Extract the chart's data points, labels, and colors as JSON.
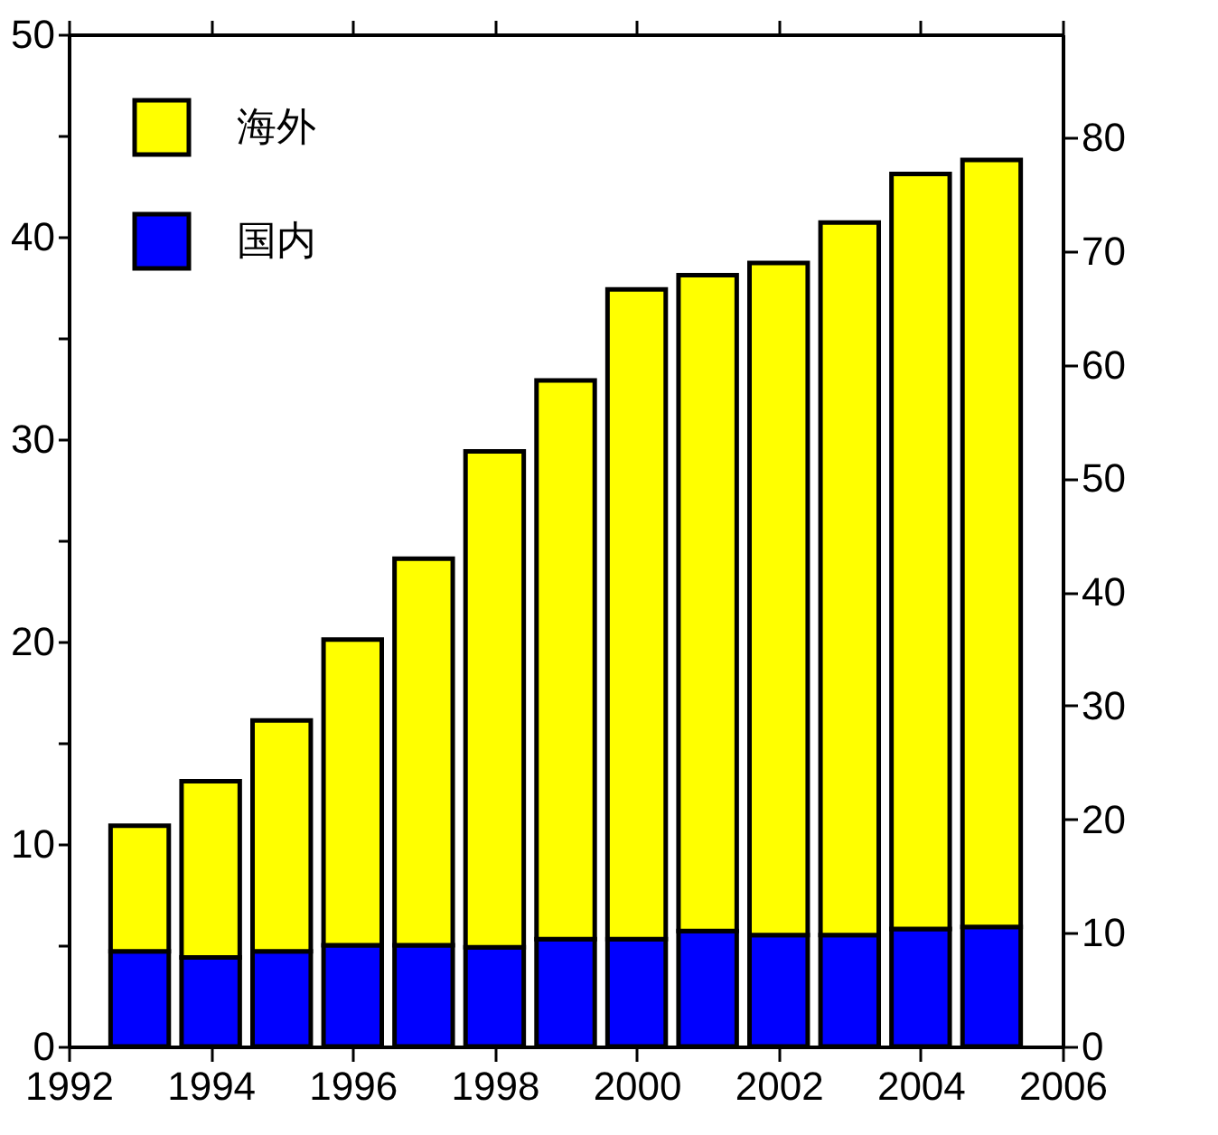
{
  "chart_data": {
    "type": "bar",
    "stacked": true,
    "x": [
      1993,
      1994,
      1995,
      1996,
      1997,
      1998,
      1999,
      2000,
      2001,
      2002,
      2003,
      2004,
      2005
    ],
    "series": [
      {
        "name": "国内",
        "color": "#0000ff",
        "values": [
          4.7,
          4.4,
          4.7,
          5.0,
          5.0,
          4.9,
          5.3,
          5.3,
          5.7,
          5.5,
          5.5,
          5.8,
          5.9
        ]
      },
      {
        "name": "海外",
        "color": "#ffff00",
        "values": [
          6.2,
          8.7,
          11.4,
          15.1,
          19.1,
          24.5,
          27.6,
          32.1,
          32.4,
          33.2,
          35.2,
          37.3,
          37.9
        ]
      }
    ],
    "xlim": [
      1992,
      2006
    ],
    "xticks": [
      1992,
      1994,
      1996,
      1998,
      2000,
      2002,
      2004,
      2006
    ],
    "ylim": [
      0,
      50
    ],
    "yticks": [
      0,
      {
        "value": 5,
        "label": null
      },
      10,
      {
        "value": 15,
        "label": null
      },
      20,
      {
        "value": 25,
        "label": null
      },
      30,
      {
        "value": 35,
        "label": null
      },
      40,
      {
        "value": 45,
        "label": null
      },
      50
    ],
    "y2lim": [
      0,
      89.1
    ],
    "y2ticks": [
      0,
      10,
      20,
      30,
      40,
      50,
      60,
      70,
      80
    ],
    "grid": false,
    "legend": "top left"
  }
}
